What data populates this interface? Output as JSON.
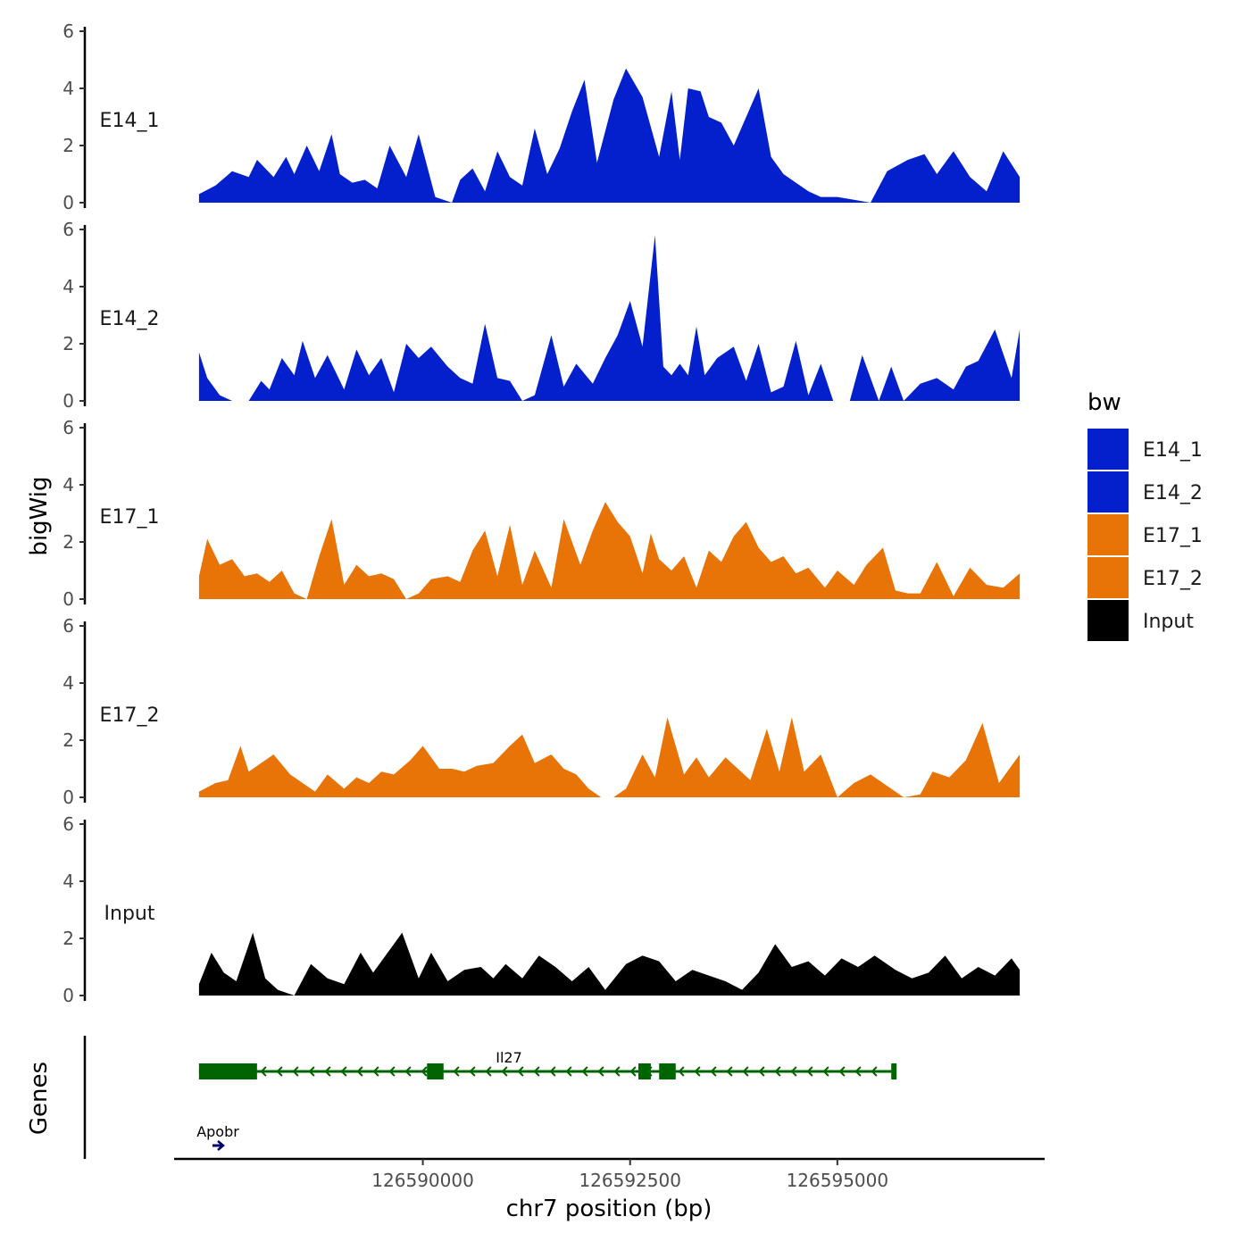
{
  "chart_data": {
    "type": "area",
    "xlabel": "chr7 position (bp)",
    "ylabel": "bigWig",
    "genes_label": "Genes",
    "xlim": [
      126587000,
      126597500
    ],
    "x_ticks": [
      126590000,
      126592500,
      126595000
    ],
    "x_tick_labels": [
      "126590000",
      "126592500",
      "126595000"
    ],
    "ylim": [
      0,
      6
    ],
    "y_ticks": [
      0,
      2,
      4,
      6
    ],
    "y_tick_labels": [
      "0",
      "2",
      "4",
      "6"
    ],
    "legend": {
      "title": "bw",
      "placement": "right",
      "entries": [
        {
          "label": "E14_1",
          "color": "#0420CC"
        },
        {
          "label": "E14_2",
          "color": "#0420CC"
        },
        {
          "label": "E17_1",
          "color": "#E87306"
        },
        {
          "label": "E17_2",
          "color": "#E87306"
        },
        {
          "label": "Input",
          "color": "#000000"
        }
      ]
    },
    "series": [
      {
        "name": "E14_1",
        "color": "#0420CC",
        "x": [
          126587300,
          126587500,
          126587700,
          126587900,
          126588000,
          126588200,
          126588350,
          126588450,
          126588600,
          126588750,
          126588900,
          126589000,
          126589150,
          126589300,
          126589450,
          126589600,
          126589800,
          126589950,
          126590150,
          126590350,
          126590450,
          126590600,
          126590750,
          126590900,
          126591050,
          126591200,
          126591350,
          126591500,
          126591650,
          126591800,
          126591950,
          126592100,
          126592300,
          126592450,
          126592650,
          126592850,
          126593000,
          126593100,
          126593200,
          126593350,
          126593450,
          126593600,
          126593750,
          126593900,
          126594050,
          126594200,
          126594350,
          126594500,
          126594650,
          126594800,
          126595000,
          126595200,
          126595400,
          126595600,
          126595850,
          126596050,
          126596200,
          126596400,
          126596600,
          126596800,
          126597000,
          126597200
        ],
        "values": [
          0.3,
          0.6,
          1.1,
          0.9,
          1.5,
          0.9,
          1.6,
          1.0,
          2.0,
          1.1,
          2.4,
          1.0,
          0.7,
          0.8,
          0.5,
          2.0,
          0.9,
          2.4,
          0.2,
          0.0,
          0.8,
          1.2,
          0.4,
          1.8,
          0.9,
          0.6,
          2.6,
          1.0,
          1.9,
          3.2,
          4.3,
          1.4,
          3.6,
          4.7,
          3.7,
          1.6,
          3.9,
          1.5,
          4.0,
          3.9,
          3.0,
          2.8,
          2.0,
          3.0,
          4.0,
          1.6,
          1.0,
          0.7,
          0.4,
          0.2,
          0.2,
          0.1,
          0.0,
          1.1,
          1.5,
          1.7,
          1.0,
          1.8,
          0.9,
          0.4,
          1.8,
          0.9
        ]
      },
      {
        "name": "E14_2",
        "color": "#0420CC",
        "x": [
          126587300,
          126587400,
          126587550,
          126587700,
          126587900,
          126588050,
          126588150,
          126588300,
          126588450,
          126588550,
          126588700,
          126588850,
          126589050,
          126589200,
          126589350,
          126589500,
          126589650,
          126589800,
          126589950,
          126590100,
          126590300,
          126590450,
          126590600,
          126590750,
          126590900,
          126591050,
          126591200,
          126591350,
          126591550,
          126591700,
          126591850,
          126592050,
          126592200,
          126592350,
          126592500,
          126592650,
          126592800,
          126592900,
          126593000,
          126593100,
          126593200,
          126593300,
          126593400,
          126593550,
          126593750,
          126593900,
          126594050,
          126594200,
          126594350,
          126594500,
          126594650,
          126594800,
          126594950,
          126595150,
          126595300,
          126595500,
          126595650,
          126595800,
          126596000,
          126596200,
          126596400,
          126596550,
          126596700,
          126596900,
          126597100,
          126597200
        ],
        "values": [
          1.7,
          0.8,
          0.2,
          0.0,
          0.0,
          0.7,
          0.4,
          1.5,
          0.9,
          2.1,
          0.8,
          1.6,
          0.4,
          1.8,
          0.9,
          1.5,
          0.3,
          2.0,
          1.5,
          1.9,
          1.2,
          0.8,
          0.6,
          2.7,
          0.8,
          0.7,
          0.0,
          0.2,
          2.3,
          0.5,
          1.3,
          0.6,
          1.5,
          2.3,
          3.5,
          1.9,
          5.8,
          1.2,
          0.9,
          1.3,
          0.9,
          2.6,
          0.9,
          1.5,
          1.9,
          0.7,
          2.0,
          0.3,
          0.5,
          2.1,
          0.2,
          1.3,
          0.0,
          0.0,
          1.6,
          0.0,
          1.2,
          0.0,
          0.6,
          0.8,
          0.4,
          1.2,
          1.4,
          2.5,
          0.8,
          2.5
        ]
      },
      {
        "name": "E17_1",
        "color": "#E87306",
        "x": [
          126587300,
          126587400,
          126587550,
          126587700,
          126587850,
          126588000,
          126588150,
          126588300,
          126588450,
          126588600,
          126588750,
          126588900,
          126589050,
          126589200,
          126589350,
          126589500,
          126589650,
          126589800,
          126589950,
          126590100,
          126590300,
          126590450,
          126590600,
          126590750,
          126590900,
          126591050,
          126591200,
          126591350,
          126591550,
          126591700,
          126591900,
          126592050,
          126592200,
          126592350,
          126592500,
          126592650,
          126592750,
          126592850,
          126593000,
          126593150,
          126593300,
          126593450,
          126593600,
          126593750,
          126593900,
          126594050,
          126594200,
          126594350,
          126594500,
          126594650,
          126594850,
          126595000,
          126595200,
          126595350,
          126595550,
          126595700,
          126595850,
          126596000,
          126596200,
          126596400,
          126596600,
          126596800,
          126597000,
          126597200
        ],
        "values": [
          0.8,
          2.1,
          1.2,
          1.4,
          0.8,
          0.9,
          0.6,
          1.0,
          0.2,
          0.0,
          1.5,
          2.8,
          0.5,
          1.2,
          0.8,
          0.9,
          0.7,
          0.0,
          0.2,
          0.7,
          0.8,
          0.6,
          1.7,
          2.4,
          0.8,
          2.6,
          0.5,
          1.7,
          0.4,
          2.8,
          1.2,
          2.4,
          3.4,
          2.7,
          2.2,
          0.9,
          2.3,
          1.4,
          1.0,
          1.5,
          0.4,
          1.7,
          1.3,
          2.2,
          2.7,
          1.8,
          1.3,
          1.5,
          0.9,
          1.1,
          0.4,
          1.0,
          0.5,
          1.2,
          1.8,
          0.3,
          0.2,
          0.2,
          1.3,
          0.1,
          1.1,
          0.5,
          0.4,
          0.9
        ]
      },
      {
        "name": "E17_2",
        "color": "#E87306",
        "x": [
          126587300,
          126587500,
          126587650,
          126587800,
          126587900,
          126588050,
          126588200,
          126588400,
          126588550,
          126588700,
          126588850,
          126589050,
          126589200,
          126589350,
          126589500,
          126589650,
          126589850,
          126590000,
          126590200,
          126590350,
          126590500,
          126590650,
          126590850,
          126591050,
          126591200,
          126591350,
          126591550,
          126591700,
          126591850,
          126592000,
          126592150,
          126592300,
          126592450,
          126592650,
          126592800,
          126592950,
          126593150,
          126593300,
          126593450,
          126593650,
          126593800,
          126593950,
          126594150,
          126594300,
          126594450,
          126594600,
          126594800,
          126595000,
          126595200,
          126595400,
          126595600,
          126595800,
          126596000,
          126596150,
          126596350,
          126596550,
          126596750,
          126596950,
          126597200
        ],
        "values": [
          0.2,
          0.5,
          0.6,
          1.8,
          0.9,
          1.2,
          1.5,
          0.8,
          0.5,
          0.2,
          0.8,
          0.3,
          0.7,
          0.5,
          0.9,
          0.8,
          1.3,
          1.8,
          1.0,
          1.0,
          0.9,
          1.1,
          1.2,
          1.8,
          2.2,
          1.2,
          1.5,
          1.0,
          0.8,
          0.3,
          0.0,
          0.0,
          0.3,
          1.5,
          0.7,
          2.8,
          0.8,
          1.4,
          0.7,
          1.4,
          1.0,
          0.6,
          2.4,
          0.9,
          2.8,
          0.9,
          1.5,
          0.0,
          0.5,
          0.8,
          0.4,
          0.0,
          0.1,
          0.9,
          0.7,
          1.3,
          2.6,
          0.5,
          1.5
        ]
      },
      {
        "name": "Input",
        "color": "#000000",
        "x": [
          126587300,
          126587450,
          126587600,
          126587750,
          126587950,
          126588100,
          126588250,
          126588450,
          126588650,
          126588850,
          126589050,
          126589250,
          126589400,
          126589550,
          126589750,
          126589950,
          126590100,
          126590300,
          126590500,
          126590700,
          126590850,
          126591000,
          126591200,
          126591400,
          126591600,
          126591800,
          126592000,
          126592200,
          126592450,
          126592650,
          126592850,
          126593050,
          126593250,
          126593450,
          126593650,
          126593850,
          126594050,
          126594250,
          126594450,
          126594650,
          126594850,
          126595050,
          126595250,
          126595450,
          126595700,
          126595900,
          126596100,
          126596300,
          126596500,
          126596700,
          126596900,
          126597100,
          126597200
        ],
        "values": [
          0.4,
          1.5,
          0.8,
          0.5,
          2.2,
          0.6,
          0.2,
          0.0,
          1.1,
          0.6,
          0.4,
          1.5,
          0.8,
          1.4,
          2.2,
          0.6,
          1.5,
          0.5,
          0.9,
          1.0,
          0.6,
          1.1,
          0.6,
          1.4,
          1.0,
          0.5,
          1.0,
          0.2,
          1.1,
          1.4,
          1.2,
          0.5,
          0.9,
          0.7,
          0.5,
          0.2,
          0.8,
          1.8,
          1.0,
          1.2,
          0.7,
          1.3,
          1.0,
          1.4,
          0.9,
          0.6,
          0.8,
          1.4,
          0.6,
          1.0,
          0.7,
          1.3,
          0.9
        ]
      }
    ],
    "genes": [
      {
        "name": "Il27",
        "strand": "-",
        "start": 126587300,
        "end": 126595700,
        "exons": [
          [
            126587300,
            126588000
          ],
          [
            126590050,
            126590250
          ],
          [
            126592600,
            126592750
          ],
          [
            126592850,
            126593050
          ],
          [
            126595650,
            126595700
          ]
        ],
        "color": "#006400"
      },
      {
        "name": "Apobr",
        "strand": "+",
        "start": 126587350,
        "end": 126587450,
        "exons": [],
        "color": "#00006E"
      }
    ]
  }
}
